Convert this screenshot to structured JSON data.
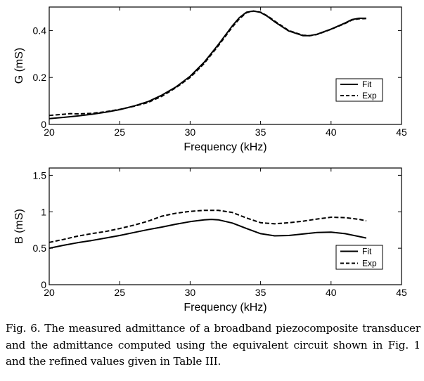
{
  "chart_data": [
    {
      "type": "line",
      "title": "",
      "xlabel": "Frequency (kHz)",
      "ylabel": "G (mS)",
      "xlim": [
        20,
        45
      ],
      "ylim": [
        0,
        0.5
      ],
      "xticks": [
        "20",
        "25",
        "30",
        "35",
        "40",
        "45"
      ],
      "yticks": [
        "0",
        "0.2",
        "0.4"
      ],
      "ytick_values": [
        0,
        0.2,
        0.4
      ],
      "legend": {
        "position": "bottom-right",
        "entries": [
          "Fit",
          "Exp"
        ]
      },
      "series": [
        {
          "name": "Fit",
          "style": "solid",
          "x": [
            20,
            21,
            22,
            23,
            24,
            25,
            26,
            27,
            28,
            29,
            30,
            31,
            32,
            33,
            33.5,
            34,
            34.5,
            35,
            35.5,
            36,
            37,
            38,
            38.5,
            39,
            40,
            41,
            41.5,
            42,
            42.5
          ],
          "y": [
            0.025,
            0.03,
            0.036,
            0.043,
            0.052,
            0.063,
            0.078,
            0.097,
            0.125,
            0.16,
            0.205,
            0.265,
            0.34,
            0.42,
            0.455,
            0.478,
            0.483,
            0.477,
            0.46,
            0.437,
            0.398,
            0.378,
            0.378,
            0.384,
            0.406,
            0.432,
            0.447,
            0.452,
            0.452
          ]
        },
        {
          "name": "Exp",
          "style": "dashed",
          "x": [
            20,
            21,
            21.5,
            22,
            23,
            24,
            25,
            26,
            27,
            28,
            29,
            30,
            31,
            32,
            33,
            33.5,
            34,
            34.5,
            35,
            35.5,
            36,
            37,
            38,
            38.5,
            39,
            40,
            41,
            41.5,
            42,
            42.5
          ],
          "y": [
            0.038,
            0.043,
            0.046,
            0.045,
            0.047,
            0.054,
            0.064,
            0.077,
            0.093,
            0.12,
            0.157,
            0.2,
            0.26,
            0.335,
            0.415,
            0.45,
            0.476,
            0.483,
            0.478,
            0.462,
            0.44,
            0.4,
            0.38,
            0.378,
            0.383,
            0.405,
            0.43,
            0.445,
            0.45,
            0.451
          ]
        }
      ]
    },
    {
      "type": "line",
      "title": "",
      "xlabel": "Frequency (kHz)",
      "ylabel": "B (mS)",
      "xlim": [
        20,
        45
      ],
      "ylim": [
        0,
        1.6
      ],
      "xticks": [
        "20",
        "25",
        "30",
        "35",
        "40",
        "45"
      ],
      "yticks": [
        "0",
        "0.5",
        "1",
        "1.5"
      ],
      "ytick_values": [
        0,
        0.5,
        1,
        1.5
      ],
      "legend": {
        "position": "bottom-right",
        "entries": [
          "Fit",
          "Exp"
        ]
      },
      "series": [
        {
          "name": "Fit",
          "style": "solid",
          "x": [
            20,
            21,
            22,
            23,
            24,
            25,
            26,
            27,
            28,
            29,
            30,
            31,
            31.5,
            32,
            33,
            34,
            35,
            36,
            37,
            38,
            39,
            40,
            41,
            42,
            42.5
          ],
          "y": [
            0.5,
            0.54,
            0.575,
            0.605,
            0.64,
            0.675,
            0.715,
            0.755,
            0.79,
            0.83,
            0.865,
            0.89,
            0.895,
            0.89,
            0.845,
            0.77,
            0.7,
            0.67,
            0.675,
            0.695,
            0.715,
            0.72,
            0.7,
            0.66,
            0.64
          ]
        },
        {
          "name": "Exp",
          "style": "dashed",
          "x": [
            20,
            21,
            22,
            23,
            24,
            25,
            26,
            27,
            28,
            29,
            30,
            31,
            32,
            33,
            34,
            35,
            36,
            37,
            38,
            39,
            40,
            41,
            42,
            42.5
          ],
          "y": [
            0.58,
            0.62,
            0.665,
            0.7,
            0.73,
            0.77,
            0.815,
            0.87,
            0.94,
            0.98,
            1.005,
            1.02,
            1.02,
            0.99,
            0.915,
            0.85,
            0.835,
            0.85,
            0.87,
            0.9,
            0.925,
            0.92,
            0.895,
            0.875
          ]
        }
      ]
    }
  ],
  "caption": "Fig. 6. The measured admittance of a broadband piezocomposite transducer and the admittance computed using the equivalent circuit shown in Fig. 1 and the refined values given in Table III."
}
